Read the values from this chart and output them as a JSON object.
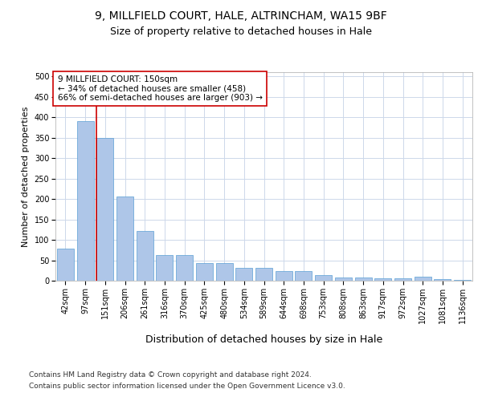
{
  "title1": "9, MILLFIELD COURT, HALE, ALTRINCHAM, WA15 9BF",
  "title2": "Size of property relative to detached houses in Hale",
  "xlabel": "Distribution of detached houses by size in Hale",
  "ylabel": "Number of detached properties",
  "categories": [
    "42sqm",
    "97sqm",
    "151sqm",
    "206sqm",
    "261sqm",
    "316sqm",
    "370sqm",
    "425sqm",
    "480sqm",
    "534sqm",
    "589sqm",
    "644sqm",
    "698sqm",
    "753sqm",
    "808sqm",
    "863sqm",
    "917sqm",
    "972sqm",
    "1027sqm",
    "1081sqm",
    "1136sqm"
  ],
  "values": [
    78,
    390,
    350,
    205,
    122,
    63,
    63,
    43,
    43,
    32,
    32,
    23,
    23,
    13,
    8,
    8,
    6,
    6,
    10,
    3,
    2
  ],
  "bar_color": "#aec6e8",
  "bar_edge_color": "#5a9fd4",
  "vline_color": "#cc0000",
  "annotation_text": "9 MILLFIELD COURT: 150sqm\n← 34% of detached houses are smaller (458)\n66% of semi-detached houses are larger (903) →",
  "annotation_box_color": "#ffffff",
  "annotation_box_edge": "#cc0000",
  "footer1": "Contains HM Land Registry data © Crown copyright and database right 2024.",
  "footer2": "Contains public sector information licensed under the Open Government Licence v3.0.",
  "bg_color": "#ffffff",
  "grid_color": "#cdd8ea",
  "title1_fontsize": 10,
  "title2_fontsize": 9,
  "xlabel_fontsize": 9,
  "ylabel_fontsize": 8,
  "tick_fontsize": 7,
  "annot_fontsize": 7.5,
  "footer_fontsize": 6.5,
  "ylim": [
    0,
    510
  ],
  "yticks": [
    0,
    50,
    100,
    150,
    200,
    250,
    300,
    350,
    400,
    450,
    500
  ],
  "vline_bar_index": 2
}
